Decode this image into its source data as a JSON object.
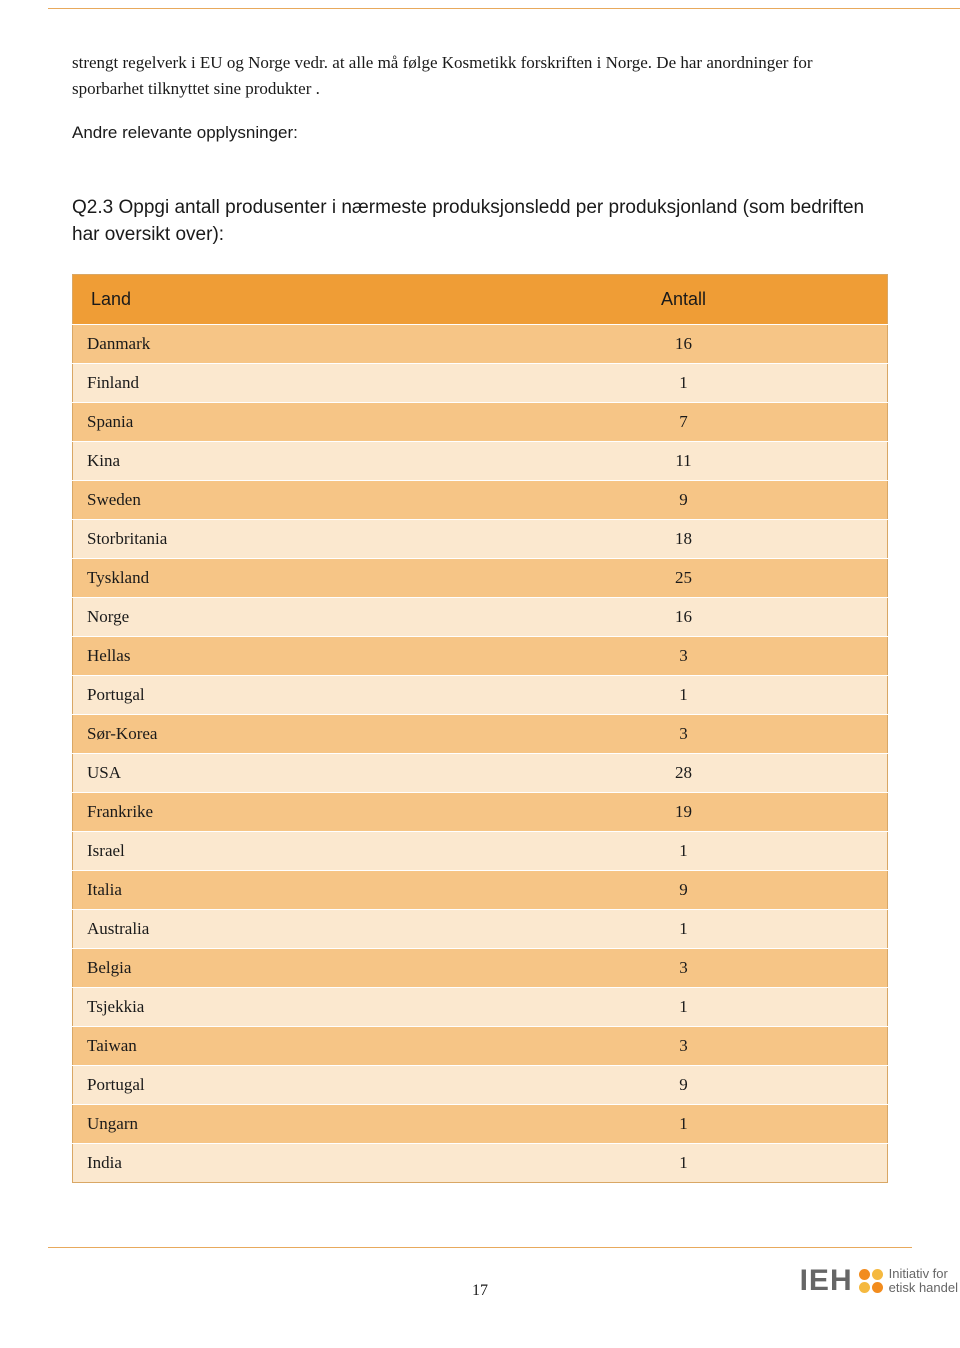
{
  "colors": {
    "rule": "#e8a95c",
    "table_border": "#d9a765",
    "header_bg": "#ef9d36",
    "row_dark": "#f6c586",
    "row_light": "#fbe8cf",
    "text": "#1a1a1a",
    "logo_grey": "#666666",
    "logo_orange": "#f28c1e",
    "logo_yellow": "#f5b940"
  },
  "paragraph": "strengt regelverk i EU og Norge vedr. at alle må følge Kosmetikk forskriften i Norge. De har anordninger for sporbarhet tilknyttet sine produkter .",
  "sub_heading": "Andre relevante opplysninger:",
  "question": "Q2.3 Oppgi antall produsenter i nærmeste produksjonsledd per produksjonland (som bedriften har oversikt over):",
  "table": {
    "columns": [
      "Land",
      "Antall"
    ],
    "rows": [
      [
        "Danmark",
        "16"
      ],
      [
        "Finland",
        "1"
      ],
      [
        "Spania",
        "7"
      ],
      [
        "Kina",
        "11"
      ],
      [
        "Sweden",
        "9"
      ],
      [
        "Storbritania",
        "18"
      ],
      [
        "Tyskland",
        "25"
      ],
      [
        "Norge",
        "16"
      ],
      [
        "Hellas",
        "3"
      ],
      [
        "Portugal",
        "1"
      ],
      [
        "Sør-Korea",
        "3"
      ],
      [
        "USA",
        "28"
      ],
      [
        "Frankrike",
        "19"
      ],
      [
        "Israel",
        "1"
      ],
      [
        "Italia",
        "9"
      ],
      [
        "Australia",
        "1"
      ],
      [
        "Belgia",
        "3"
      ],
      [
        "Tsjekkia",
        "1"
      ],
      [
        "Taiwan",
        "3"
      ],
      [
        "Portugal",
        "9"
      ],
      [
        "Ungarn",
        "1"
      ],
      [
        "India",
        "1"
      ]
    ]
  },
  "page_number": "17",
  "logo": {
    "abbr": "IEH",
    "line1": "Initiativ for",
    "line2": "etisk handel"
  }
}
